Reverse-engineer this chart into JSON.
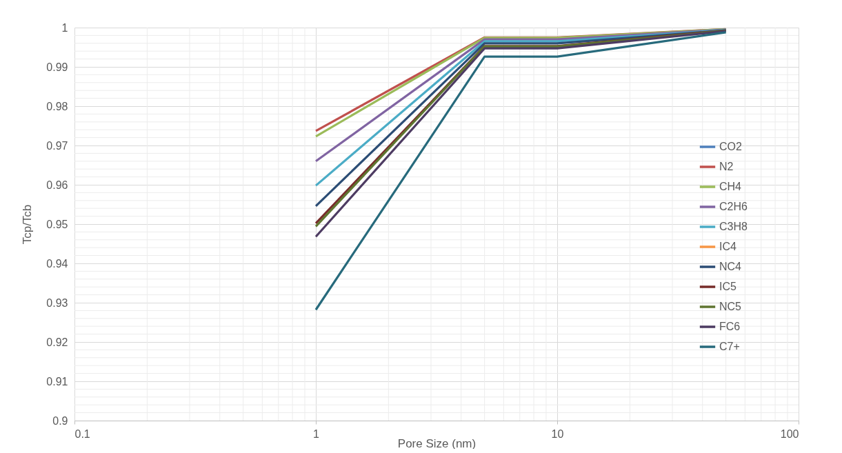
{
  "chart_data": {
    "type": "line",
    "xlabel": "Pore Size (nm)",
    "ylabel": "Tcp/Tcb",
    "x": [
      1,
      5,
      10,
      50
    ],
    "series": [
      {
        "name": "CO2",
        "color": "#4f81bd",
        "values": [
          null,
          null,
          null,
          null
        ]
      },
      {
        "name": "N2",
        "color": "#c0504d",
        "values": [
          0.9737,
          0.9975,
          0.9975,
          0.9996
        ]
      },
      {
        "name": "CH4",
        "color": "#9bbb59",
        "values": [
          0.9723,
          0.9974,
          0.9974,
          0.9996
        ]
      },
      {
        "name": "C2H6",
        "color": "#8064a2",
        "values": [
          0.966,
          0.997,
          0.997,
          0.9995
        ]
      },
      {
        "name": "C3H8",
        "color": "#4bacc6",
        "values": [
          0.9598,
          0.9965,
          0.9965,
          0.9994
        ]
      },
      {
        "name": "IC4",
        "color": "#f79646",
        "values": [
          null,
          null,
          null,
          null
        ]
      },
      {
        "name": "NC4",
        "color": "#2c4d75",
        "values": [
          0.9546,
          0.996,
          0.996,
          0.9993
        ]
      },
      {
        "name": "IC5",
        "color": "#772c2a",
        "values": [
          0.9502,
          0.9953,
          0.9953,
          0.9993
        ]
      },
      {
        "name": "NC5",
        "color": "#5f7530",
        "values": [
          0.9494,
          0.9952,
          0.9952,
          0.9992
        ]
      },
      {
        "name": "FC6",
        "color": "#4d3b62",
        "values": [
          0.9468,
          0.9947,
          0.9947,
          0.9991
        ]
      },
      {
        "name": "C7+",
        "color": "#276a7c",
        "values": [
          0.9282,
          0.9926,
          0.9926,
          0.9988
        ]
      }
    ],
    "xlim": [
      0.1,
      100
    ],
    "xticks": [
      0.1,
      1,
      10,
      100
    ],
    "ylim": [
      0.9,
      1
    ],
    "yticks": [
      0.9,
      0.91,
      0.92,
      0.93,
      0.94,
      0.95,
      0.96,
      0.97,
      0.98,
      0.99,
      1
    ],
    "log": "x",
    "grid": true,
    "legend": "right"
  }
}
